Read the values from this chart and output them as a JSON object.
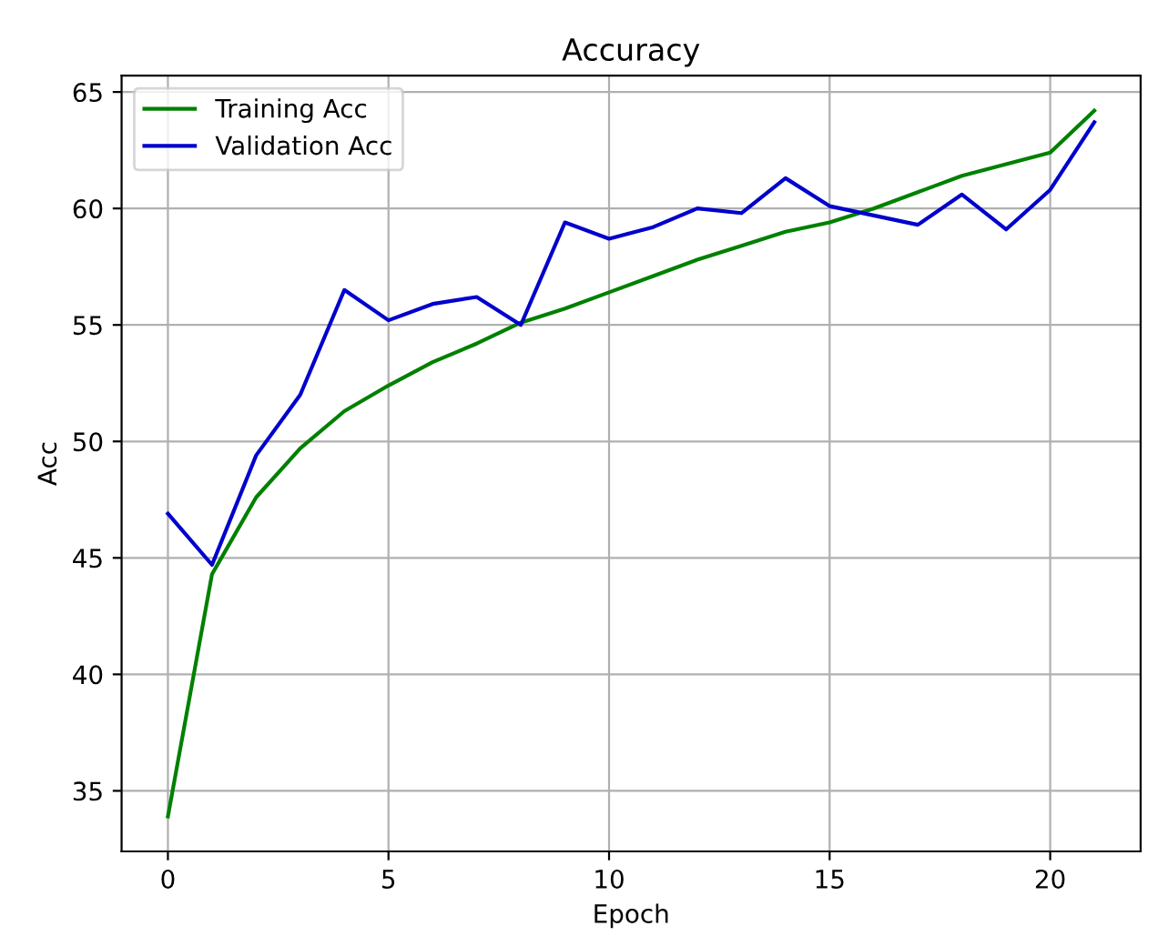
{
  "chart_data": {
    "type": "line",
    "title": "Accuracy",
    "xlabel": "Epoch",
    "ylabel": "Acc",
    "x": [
      0,
      1,
      2,
      3,
      4,
      5,
      6,
      7,
      8,
      9,
      10,
      11,
      12,
      13,
      14,
      15,
      16,
      17,
      18,
      19,
      20,
      21
    ],
    "series": [
      {
        "name": "Training Acc",
        "color": "#008000",
        "values": [
          33.9,
          44.3,
          47.6,
          49.7,
          51.3,
          52.4,
          53.4,
          54.2,
          55.1,
          55.7,
          56.4,
          57.1,
          57.8,
          58.4,
          59.0,
          59.4,
          60.0,
          60.7,
          61.4,
          61.9,
          62.4,
          64.2
        ]
      },
      {
        "name": "Validation Acc",
        "color": "#0000cc",
        "values": [
          46.9,
          44.7,
          49.4,
          52.0,
          56.5,
          55.2,
          55.9,
          56.2,
          55.0,
          59.4,
          58.7,
          59.2,
          60.0,
          59.8,
          61.3,
          60.1,
          59.7,
          59.3,
          60.6,
          59.1,
          60.8,
          63.7
        ]
      }
    ],
    "xlim": [
      -1.05,
      22.05
    ],
    "ylim": [
      32.4,
      65.7
    ],
    "xticks": [
      0,
      5,
      10,
      15,
      20
    ],
    "yticks": [
      35,
      40,
      45,
      50,
      55,
      60,
      65
    ],
    "grid": true,
    "legend": "top left"
  }
}
